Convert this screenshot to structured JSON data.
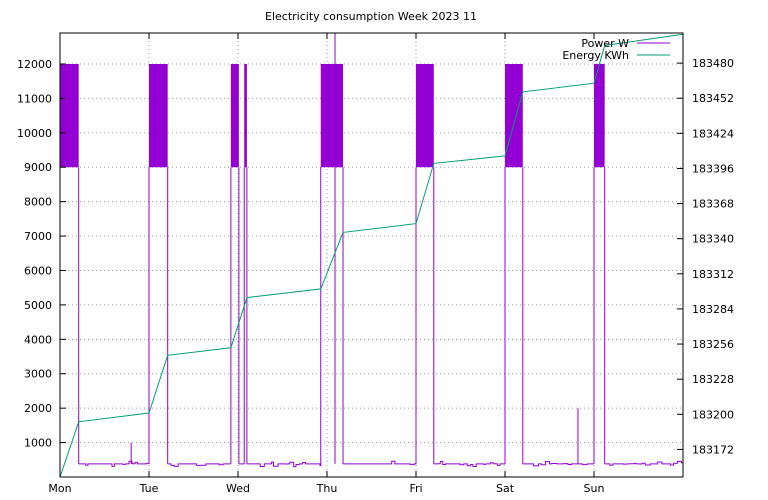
{
  "chart_data": {
    "type": "line",
    "title": "Electricity consumption Week 2023 11",
    "x_categories": [
      "Mon",
      "Tue",
      "Wed",
      "Thu",
      "Fri",
      "Sat",
      "Sun"
    ],
    "xlim": [
      0,
      7
    ],
    "ylim_left": [
      0,
      12900
    ],
    "yticks_left": [
      1000,
      2000,
      3000,
      4000,
      5000,
      6000,
      7000,
      8000,
      9000,
      10000,
      11000,
      12000
    ],
    "ylim_right": [
      183150,
      183504
    ],
    "yticks_right": [
      183172,
      183200,
      183228,
      183256,
      183284,
      183312,
      183340,
      183368,
      183396,
      183424,
      183452,
      183480
    ],
    "grid": true,
    "legend_position": "top-right",
    "colors": {
      "power": "#9400d3",
      "energy": "#009e73"
    },
    "series": [
      {
        "name": "Power W",
        "axis": "left",
        "baseline_w": 380,
        "high_w": 9000,
        "peak_w": 12000,
        "heating_blocks": [
          {
            "start": 0.0,
            "end": 0.21
          },
          {
            "start": 1.0,
            "end": 1.21
          },
          {
            "start": 1.92,
            "end": 2.01
          },
          {
            "start": 2.07,
            "end": 2.1
          },
          {
            "start": 2.93,
            "end": 3.18
          },
          {
            "start": 4.0,
            "end": 4.2
          },
          {
            "start": 5.0,
            "end": 5.2
          },
          {
            "start": 6.0,
            "end": 6.12
          }
        ],
        "spikes": [
          {
            "x": 0.8,
            "value": 1000
          },
          {
            "x": 3.09,
            "value": 13000
          },
          {
            "x": 5.82,
            "value": 2000
          }
        ]
      },
      {
        "name": "Energy KWh",
        "axis": "right",
        "points": [
          [
            0.0,
            183150
          ],
          [
            0.21,
            183194
          ],
          [
            1.0,
            183201
          ],
          [
            1.21,
            183247
          ],
          [
            1.92,
            183253
          ],
          [
            2.1,
            183293
          ],
          [
            2.93,
            183300
          ],
          [
            3.18,
            183345
          ],
          [
            4.0,
            183352
          ],
          [
            4.2,
            183400
          ],
          [
            5.0,
            183406
          ],
          [
            5.2,
            183457
          ],
          [
            6.0,
            183464
          ],
          [
            6.12,
            183494
          ],
          [
            7.0,
            183503
          ]
        ]
      }
    ]
  }
}
